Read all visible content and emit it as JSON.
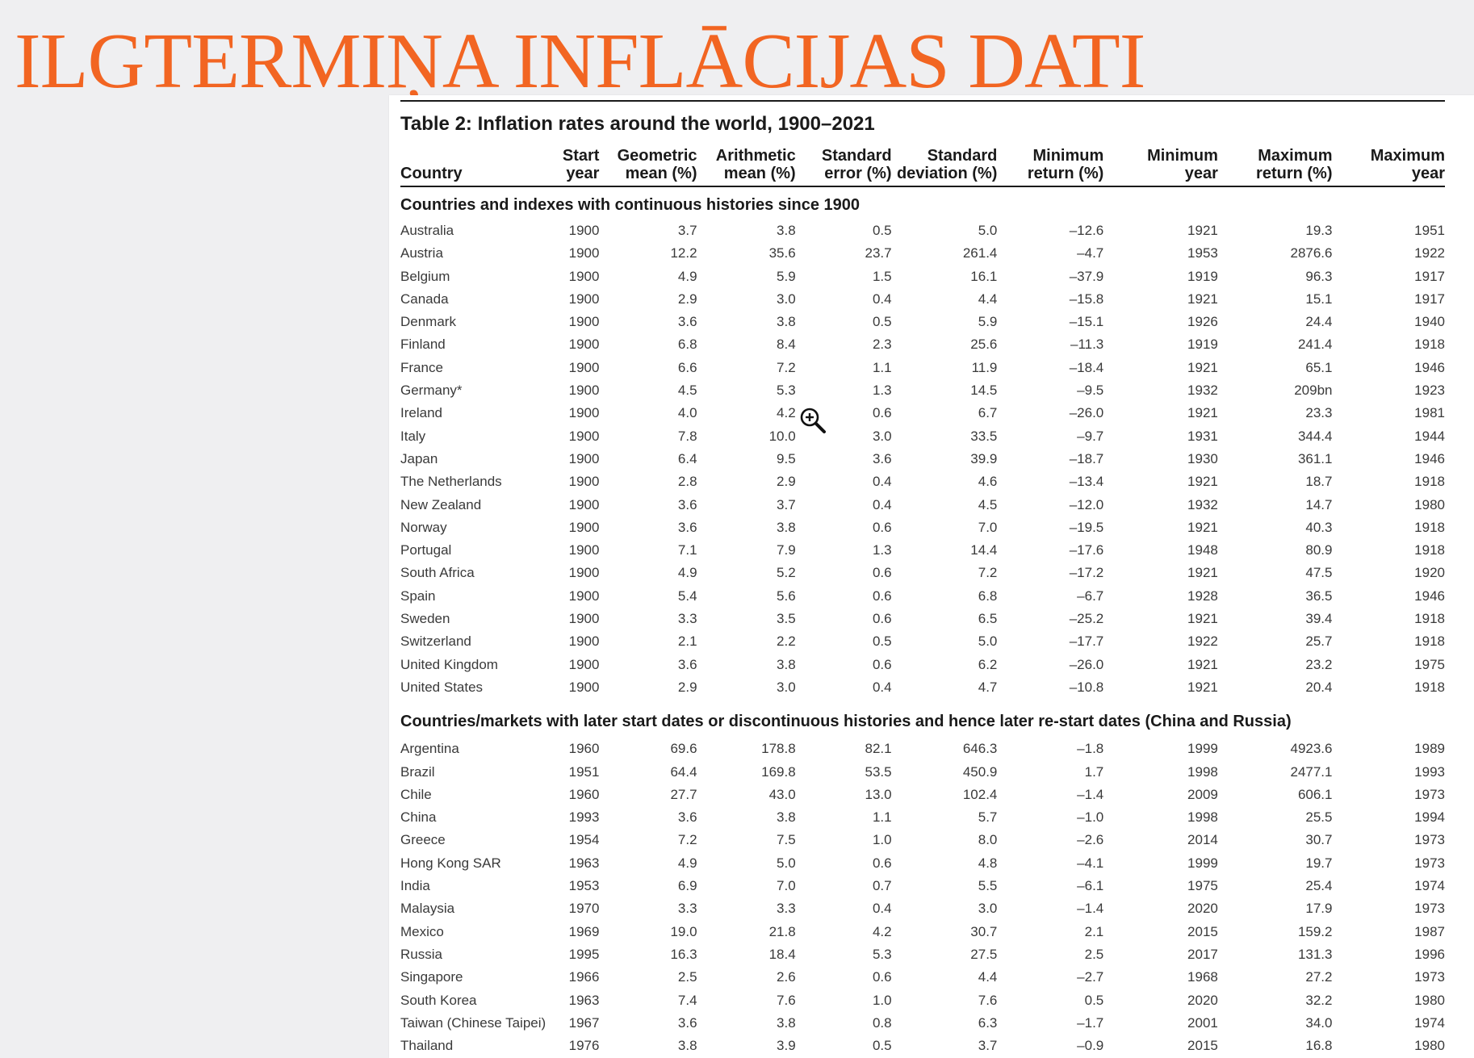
{
  "slide": {
    "title": "ILGTERMIŅA INFLĀCIJAS DATI"
  },
  "table": {
    "caption": "Table 2: Inflation rates around the world, 1900–2021",
    "columns": [
      [
        "Country",
        ""
      ],
      [
        "Start",
        "year"
      ],
      [
        "Geometric",
        "mean (%)"
      ],
      [
        "Arithmetic",
        "mean (%)"
      ],
      [
        "Standard",
        "error (%)"
      ],
      [
        "Standard",
        "deviation (%)"
      ],
      [
        "Minimum",
        "return (%)"
      ],
      [
        "Minimum",
        "year"
      ],
      [
        "Maximum",
        "return (%)"
      ],
      [
        "Maximum",
        "year"
      ]
    ],
    "sections": [
      {
        "heading": "Countries and indexes with continuous histories since 1900",
        "rows": [
          [
            "Australia",
            "1900",
            "3.7",
            "3.8",
            "0.5",
            "5.0",
            "–12.6",
            "1921",
            "19.3",
            "1951"
          ],
          [
            "Austria",
            "1900",
            "12.2",
            "35.6",
            "23.7",
            "261.4",
            "–4.7",
            "1953",
            "2876.6",
            "1922"
          ],
          [
            "Belgium",
            "1900",
            "4.9",
            "5.9",
            "1.5",
            "16.1",
            "–37.9",
            "1919",
            "96.3",
            "1917"
          ],
          [
            "Canada",
            "1900",
            "2.9",
            "3.0",
            "0.4",
            "4.4",
            "–15.8",
            "1921",
            "15.1",
            "1917"
          ],
          [
            "Denmark",
            "1900",
            "3.6",
            "3.8",
            "0.5",
            "5.9",
            "–15.1",
            "1926",
            "24.4",
            "1940"
          ],
          [
            "Finland",
            "1900",
            "6.8",
            "8.4",
            "2.3",
            "25.6",
            "–11.3",
            "1919",
            "241.4",
            "1918"
          ],
          [
            "France",
            "1900",
            "6.6",
            "7.2",
            "1.1",
            "11.9",
            "–18.4",
            "1921",
            "65.1",
            "1946"
          ],
          [
            "Germany*",
            "1900",
            "4.5",
            "5.3",
            "1.3",
            "14.5",
            "–9.5",
            "1932",
            "209bn",
            "1923"
          ],
          [
            "Ireland",
            "1900",
            "4.0",
            "4.2",
            "0.6",
            "6.7",
            "–26.0",
            "1921",
            "23.3",
            "1981"
          ],
          [
            "Italy",
            "1900",
            "7.8",
            "10.0",
            "3.0",
            "33.5",
            "–9.7",
            "1931",
            "344.4",
            "1944"
          ],
          [
            "Japan",
            "1900",
            "6.4",
            "9.5",
            "3.6",
            "39.9",
            "–18.7",
            "1930",
            "361.1",
            "1946"
          ],
          [
            "The Netherlands",
            "1900",
            "2.8",
            "2.9",
            "0.4",
            "4.6",
            "–13.4",
            "1921",
            "18.7",
            "1918"
          ],
          [
            "New Zealand",
            "1900",
            "3.6",
            "3.7",
            "0.4",
            "4.5",
            "–12.0",
            "1932",
            "14.7",
            "1980"
          ],
          [
            "Norway",
            "1900",
            "3.6",
            "3.8",
            "0.6",
            "7.0",
            "–19.5",
            "1921",
            "40.3",
            "1918"
          ],
          [
            "Portugal",
            "1900",
            "7.1",
            "7.9",
            "1.3",
            "14.4",
            "–17.6",
            "1948",
            "80.9",
            "1918"
          ],
          [
            "South Africa",
            "1900",
            "4.9",
            "5.2",
            "0.6",
            "7.2",
            "–17.2",
            "1921",
            "47.5",
            "1920"
          ],
          [
            "Spain",
            "1900",
            "5.4",
            "5.6",
            "0.6",
            "6.8",
            "–6.7",
            "1928",
            "36.5",
            "1946"
          ],
          [
            "Sweden",
            "1900",
            "3.3",
            "3.5",
            "0.6",
            "6.5",
            "–25.2",
            "1921",
            "39.4",
            "1918"
          ],
          [
            "Switzerland",
            "1900",
            "2.1",
            "2.2",
            "0.5",
            "5.0",
            "–17.7",
            "1922",
            "25.7",
            "1918"
          ],
          [
            "United Kingdom",
            "1900",
            "3.6",
            "3.8",
            "0.6",
            "6.2",
            "–26.0",
            "1921",
            "23.2",
            "1975"
          ],
          [
            "United States",
            "1900",
            "2.9",
            "3.0",
            "0.4",
            "4.7",
            "–10.8",
            "1921",
            "20.4",
            "1918"
          ]
        ]
      },
      {
        "heading": "Countries/markets with later start dates or discontinuous histories and hence later re-start dates (China and Russia)",
        "rows": [
          [
            "Argentina",
            "1960",
            "69.6",
            "178.8",
            "82.1",
            "646.3",
            "–1.8",
            "1999",
            "4923.6",
            "1989"
          ],
          [
            "Brazil",
            "1951",
            "64.4",
            "169.8",
            "53.5",
            "450.9",
            "1.7",
            "1998",
            "2477.1",
            "1993"
          ],
          [
            "Chile",
            "1960",
            "27.7",
            "43.0",
            "13.0",
            "102.4",
            "–1.4",
            "2009",
            "606.1",
            "1973"
          ],
          [
            "China",
            "1993",
            "3.6",
            "3.8",
            "1.1",
            "5.7",
            "–1.0",
            "1998",
            "25.5",
            "1994"
          ],
          [
            "Greece",
            "1954",
            "7.2",
            "7.5",
            "1.0",
            "8.0",
            "–2.6",
            "2014",
            "30.7",
            "1973"
          ],
          [
            "Hong Kong SAR",
            "1963",
            "4.9",
            "5.0",
            "0.6",
            "4.8",
            "–4.1",
            "1999",
            "19.7",
            "1973"
          ],
          [
            "India",
            "1953",
            "6.9",
            "7.0",
            "0.7",
            "5.5",
            "–6.1",
            "1975",
            "25.4",
            "1974"
          ],
          [
            "Malaysia",
            "1970",
            "3.3",
            "3.3",
            "0.4",
            "3.0",
            "–1.4",
            "2020",
            "17.9",
            "1973"
          ],
          [
            "Mexico",
            "1969",
            "19.0",
            "21.8",
            "4.2",
            "30.7",
            "2.1",
            "2015",
            "159.2",
            "1987"
          ],
          [
            "Russia",
            "1995",
            "16.3",
            "18.4",
            "5.3",
            "27.5",
            "2.5",
            "2017",
            "131.3",
            "1996"
          ],
          [
            "Singapore",
            "1966",
            "2.5",
            "2.6",
            "0.6",
            "4.4",
            "–2.7",
            "1968",
            "27.2",
            "1973"
          ],
          [
            "South Korea",
            "1963",
            "7.4",
            "7.6",
            "1.0",
            "7.6",
            "0.5",
            "2020",
            "32.2",
            "1980"
          ],
          [
            "Taiwan (Chinese Taipei)",
            "1967",
            "3.6",
            "3.8",
            "0.8",
            "6.3",
            "–1.7",
            "2001",
            "34.0",
            "1974"
          ],
          [
            "Thailand",
            "1976",
            "3.8",
            "3.9",
            "0.5",
            "3.7",
            "–0.9",
            "2015",
            "16.8",
            "1980"
          ]
        ]
      }
    ]
  },
  "cursor": {
    "icon": "zoom-in-cursor-icon"
  }
}
